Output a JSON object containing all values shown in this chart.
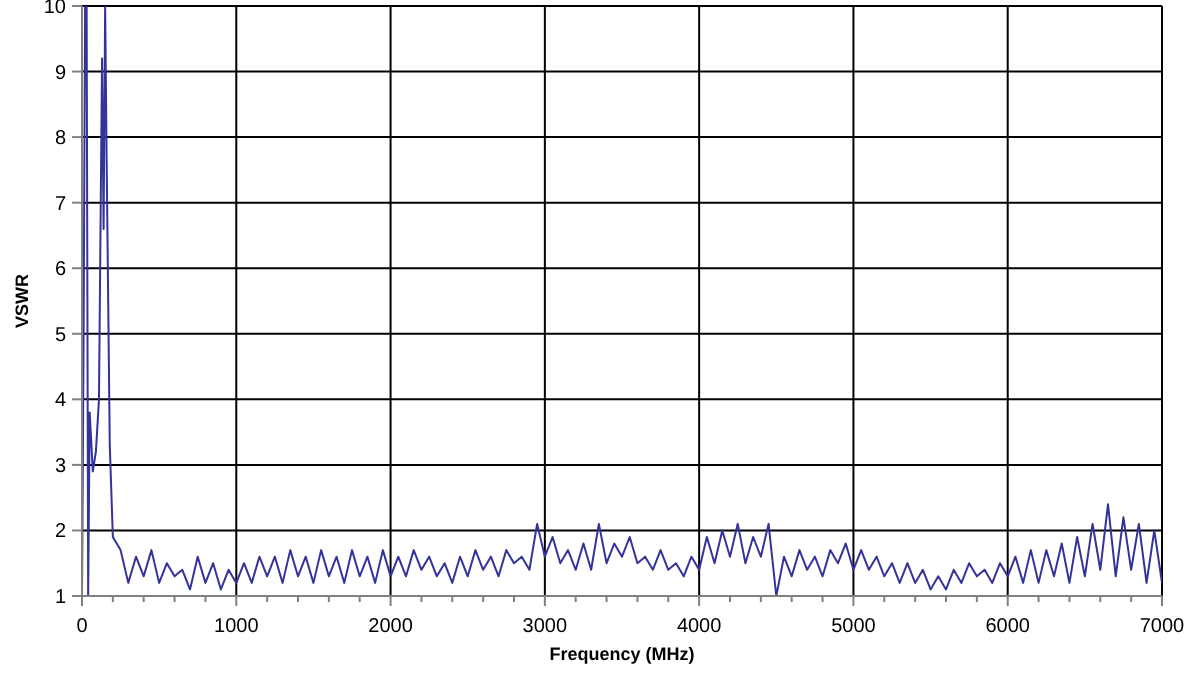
{
  "chart_data": {
    "type": "line",
    "xlabel": "Frequency (MHz)",
    "ylabel": "VSWR",
    "xlim": [
      0,
      7000
    ],
    "xticks": [
      0,
      1000,
      2000,
      3000,
      4000,
      5000,
      6000,
      7000
    ],
    "ylim": [
      1,
      10
    ],
    "yticks": [
      1,
      2,
      3,
      4,
      5,
      6,
      7,
      8,
      9,
      10
    ],
    "grid": true,
    "marker": "none",
    "line_style": "solid",
    "series": [
      {
        "color": "#333399",
        "x": [
          0,
          10,
          20,
          30,
          40,
          50,
          70,
          90,
          110,
          130,
          140,
          150,
          160,
          180,
          200,
          250,
          300,
          350,
          400,
          450,
          500,
          550,
          600,
          650,
          700,
          750,
          800,
          850,
          900,
          950,
          1000,
          1050,
          1100,
          1150,
          1200,
          1250,
          1300,
          1350,
          1400,
          1450,
          1500,
          1550,
          1600,
          1650,
          1700,
          1750,
          1800,
          1850,
          1900,
          1950,
          2000,
          2050,
          2100,
          2150,
          2200,
          2250,
          2300,
          2350,
          2400,
          2450,
          2500,
          2550,
          2600,
          2650,
          2700,
          2750,
          2800,
          2850,
          2900,
          2950,
          3000,
          3050,
          3100,
          3150,
          3200,
          3250,
          3300,
          3350,
          3400,
          3450,
          3500,
          3550,
          3600,
          3650,
          3700,
          3750,
          3800,
          3850,
          3900,
          3950,
          4000,
          4050,
          4100,
          4150,
          4200,
          4250,
          4300,
          4350,
          4400,
          4450,
          4500,
          4550,
          4600,
          4650,
          4700,
          4750,
          4800,
          4850,
          4900,
          4950,
          5000,
          5050,
          5100,
          5150,
          5200,
          5250,
          5300,
          5350,
          5400,
          5450,
          5500,
          5550,
          5600,
          5650,
          5700,
          5750,
          5800,
          5850,
          5900,
          5950,
          6000,
          6050,
          6100,
          6150,
          6200,
          6250,
          6300,
          6350,
          6400,
          6450,
          6500,
          6550,
          6600,
          6650,
          6700,
          6750,
          6800,
          6850,
          6900,
          6950,
          7000
        ],
        "values": [
          1,
          4.8,
          10,
          10,
          1,
          3.8,
          2.9,
          3.2,
          4,
          9.2,
          6.6,
          10,
          7.6,
          3.3,
          1.9,
          1.7,
          1.2,
          1.6,
          1.3,
          1.7,
          1.2,
          1.5,
          1.3,
          1.4,
          1.1,
          1.6,
          1.2,
          1.5,
          1.1,
          1.4,
          1.2,
          1.5,
          1.2,
          1.6,
          1.3,
          1.6,
          1.2,
          1.7,
          1.3,
          1.6,
          1.2,
          1.7,
          1.3,
          1.6,
          1.2,
          1.7,
          1.3,
          1.6,
          1.2,
          1.7,
          1.3,
          1.6,
          1.3,
          1.7,
          1.4,
          1.6,
          1.3,
          1.5,
          1.2,
          1.6,
          1.3,
          1.7,
          1.4,
          1.6,
          1.3,
          1.7,
          1.5,
          1.6,
          1.4,
          2.1,
          1.6,
          1.9,
          1.5,
          1.7,
          1.4,
          1.8,
          1.4,
          2.1,
          1.5,
          1.8,
          1.6,
          1.9,
          1.5,
          1.6,
          1.4,
          1.7,
          1.4,
          1.5,
          1.3,
          1.6,
          1.4,
          1.9,
          1.5,
          2.0,
          1.6,
          2.1,
          1.5,
          1.9,
          1.6,
          2.1,
          1.0,
          1.6,
          1.3,
          1.7,
          1.4,
          1.6,
          1.3,
          1.7,
          1.5,
          1.8,
          1.4,
          1.7,
          1.4,
          1.6,
          1.3,
          1.5,
          1.2,
          1.5,
          1.2,
          1.4,
          1.1,
          1.3,
          1.1,
          1.4,
          1.2,
          1.5,
          1.3,
          1.4,
          1.2,
          1.5,
          1.3,
          1.6,
          1.2,
          1.7,
          1.2,
          1.7,
          1.3,
          1.8,
          1.2,
          1.9,
          1.3,
          2.1,
          1.4,
          2.4,
          1.3,
          2.2,
          1.4,
          2.1,
          1.2,
          2.0,
          1.2
        ]
      }
    ]
  }
}
